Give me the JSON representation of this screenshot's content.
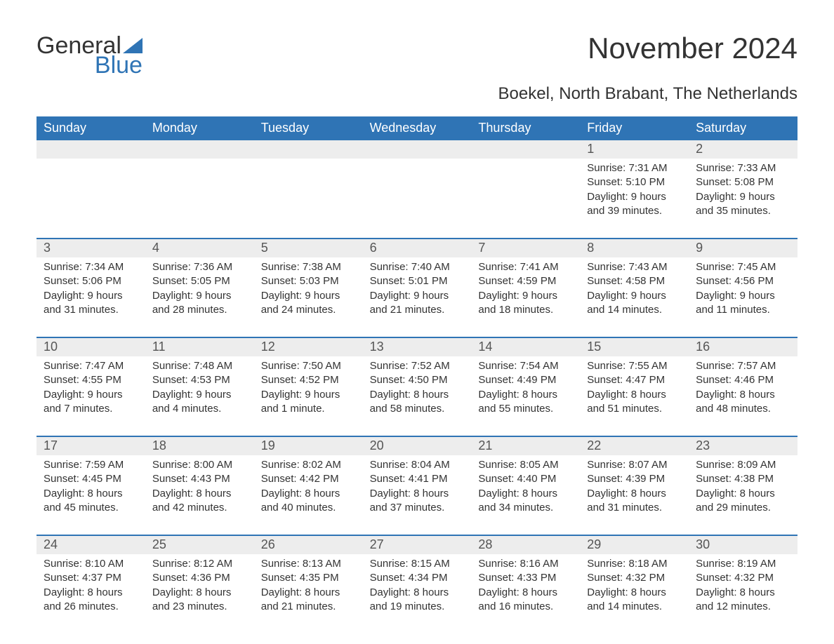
{
  "brand": {
    "part1": "General",
    "part2": "Blue",
    "brand_color": "#2f74b5"
  },
  "title": "November 2024",
  "subtitle": "Boekel, North Brabant, The Netherlands",
  "calendar": {
    "type": "table",
    "header_bg": "#2f74b5",
    "header_text_color": "#ffffff",
    "row_divider_color": "#2f74b5",
    "daynum_bg": "#ededed",
    "background_color": "#ffffff",
    "text_color": "#333333",
    "body_fontsize": 15,
    "header_fontsize": 18,
    "columns": [
      "Sunday",
      "Monday",
      "Tuesday",
      "Wednesday",
      "Thursday",
      "Friday",
      "Saturday"
    ],
    "weeks": [
      {
        "days": [
          {
            "n": "",
            "empty": true
          },
          {
            "n": "",
            "empty": true
          },
          {
            "n": "",
            "empty": true
          },
          {
            "n": "",
            "empty": true
          },
          {
            "n": "",
            "empty": true
          },
          {
            "n": "1",
            "sunrise": "Sunrise: 7:31 AM",
            "sunset": "Sunset: 5:10 PM",
            "daylight1": "Daylight: 9 hours",
            "daylight2": "and 39 minutes."
          },
          {
            "n": "2",
            "sunrise": "Sunrise: 7:33 AM",
            "sunset": "Sunset: 5:08 PM",
            "daylight1": "Daylight: 9 hours",
            "daylight2": "and 35 minutes."
          }
        ]
      },
      {
        "days": [
          {
            "n": "3",
            "sunrise": "Sunrise: 7:34 AM",
            "sunset": "Sunset: 5:06 PM",
            "daylight1": "Daylight: 9 hours",
            "daylight2": "and 31 minutes."
          },
          {
            "n": "4",
            "sunrise": "Sunrise: 7:36 AM",
            "sunset": "Sunset: 5:05 PM",
            "daylight1": "Daylight: 9 hours",
            "daylight2": "and 28 minutes."
          },
          {
            "n": "5",
            "sunrise": "Sunrise: 7:38 AM",
            "sunset": "Sunset: 5:03 PM",
            "daylight1": "Daylight: 9 hours",
            "daylight2": "and 24 minutes."
          },
          {
            "n": "6",
            "sunrise": "Sunrise: 7:40 AM",
            "sunset": "Sunset: 5:01 PM",
            "daylight1": "Daylight: 9 hours",
            "daylight2": "and 21 minutes."
          },
          {
            "n": "7",
            "sunrise": "Sunrise: 7:41 AM",
            "sunset": "Sunset: 4:59 PM",
            "daylight1": "Daylight: 9 hours",
            "daylight2": "and 18 minutes."
          },
          {
            "n": "8",
            "sunrise": "Sunrise: 7:43 AM",
            "sunset": "Sunset: 4:58 PM",
            "daylight1": "Daylight: 9 hours",
            "daylight2": "and 14 minutes."
          },
          {
            "n": "9",
            "sunrise": "Sunrise: 7:45 AM",
            "sunset": "Sunset: 4:56 PM",
            "daylight1": "Daylight: 9 hours",
            "daylight2": "and 11 minutes."
          }
        ]
      },
      {
        "days": [
          {
            "n": "10",
            "sunrise": "Sunrise: 7:47 AM",
            "sunset": "Sunset: 4:55 PM",
            "daylight1": "Daylight: 9 hours",
            "daylight2": "and 7 minutes."
          },
          {
            "n": "11",
            "sunrise": "Sunrise: 7:48 AM",
            "sunset": "Sunset: 4:53 PM",
            "daylight1": "Daylight: 9 hours",
            "daylight2": "and 4 minutes."
          },
          {
            "n": "12",
            "sunrise": "Sunrise: 7:50 AM",
            "sunset": "Sunset: 4:52 PM",
            "daylight1": "Daylight: 9 hours",
            "daylight2": "and 1 minute."
          },
          {
            "n": "13",
            "sunrise": "Sunrise: 7:52 AM",
            "sunset": "Sunset: 4:50 PM",
            "daylight1": "Daylight: 8 hours",
            "daylight2": "and 58 minutes."
          },
          {
            "n": "14",
            "sunrise": "Sunrise: 7:54 AM",
            "sunset": "Sunset: 4:49 PM",
            "daylight1": "Daylight: 8 hours",
            "daylight2": "and 55 minutes."
          },
          {
            "n": "15",
            "sunrise": "Sunrise: 7:55 AM",
            "sunset": "Sunset: 4:47 PM",
            "daylight1": "Daylight: 8 hours",
            "daylight2": "and 51 minutes."
          },
          {
            "n": "16",
            "sunrise": "Sunrise: 7:57 AM",
            "sunset": "Sunset: 4:46 PM",
            "daylight1": "Daylight: 8 hours",
            "daylight2": "and 48 minutes."
          }
        ]
      },
      {
        "days": [
          {
            "n": "17",
            "sunrise": "Sunrise: 7:59 AM",
            "sunset": "Sunset: 4:45 PM",
            "daylight1": "Daylight: 8 hours",
            "daylight2": "and 45 minutes."
          },
          {
            "n": "18",
            "sunrise": "Sunrise: 8:00 AM",
            "sunset": "Sunset: 4:43 PM",
            "daylight1": "Daylight: 8 hours",
            "daylight2": "and 42 minutes."
          },
          {
            "n": "19",
            "sunrise": "Sunrise: 8:02 AM",
            "sunset": "Sunset: 4:42 PM",
            "daylight1": "Daylight: 8 hours",
            "daylight2": "and 40 minutes."
          },
          {
            "n": "20",
            "sunrise": "Sunrise: 8:04 AM",
            "sunset": "Sunset: 4:41 PM",
            "daylight1": "Daylight: 8 hours",
            "daylight2": "and 37 minutes."
          },
          {
            "n": "21",
            "sunrise": "Sunrise: 8:05 AM",
            "sunset": "Sunset: 4:40 PM",
            "daylight1": "Daylight: 8 hours",
            "daylight2": "and 34 minutes."
          },
          {
            "n": "22",
            "sunrise": "Sunrise: 8:07 AM",
            "sunset": "Sunset: 4:39 PM",
            "daylight1": "Daylight: 8 hours",
            "daylight2": "and 31 minutes."
          },
          {
            "n": "23",
            "sunrise": "Sunrise: 8:09 AM",
            "sunset": "Sunset: 4:38 PM",
            "daylight1": "Daylight: 8 hours",
            "daylight2": "and 29 minutes."
          }
        ]
      },
      {
        "days": [
          {
            "n": "24",
            "sunrise": "Sunrise: 8:10 AM",
            "sunset": "Sunset: 4:37 PM",
            "daylight1": "Daylight: 8 hours",
            "daylight2": "and 26 minutes."
          },
          {
            "n": "25",
            "sunrise": "Sunrise: 8:12 AM",
            "sunset": "Sunset: 4:36 PM",
            "daylight1": "Daylight: 8 hours",
            "daylight2": "and 23 minutes."
          },
          {
            "n": "26",
            "sunrise": "Sunrise: 8:13 AM",
            "sunset": "Sunset: 4:35 PM",
            "daylight1": "Daylight: 8 hours",
            "daylight2": "and 21 minutes."
          },
          {
            "n": "27",
            "sunrise": "Sunrise: 8:15 AM",
            "sunset": "Sunset: 4:34 PM",
            "daylight1": "Daylight: 8 hours",
            "daylight2": "and 19 minutes."
          },
          {
            "n": "28",
            "sunrise": "Sunrise: 8:16 AM",
            "sunset": "Sunset: 4:33 PM",
            "daylight1": "Daylight: 8 hours",
            "daylight2": "and 16 minutes."
          },
          {
            "n": "29",
            "sunrise": "Sunrise: 8:18 AM",
            "sunset": "Sunset: 4:32 PM",
            "daylight1": "Daylight: 8 hours",
            "daylight2": "and 14 minutes."
          },
          {
            "n": "30",
            "sunrise": "Sunrise: 8:19 AM",
            "sunset": "Sunset: 4:32 PM",
            "daylight1": "Daylight: 8 hours",
            "daylight2": "and 12 minutes."
          }
        ]
      }
    ]
  }
}
